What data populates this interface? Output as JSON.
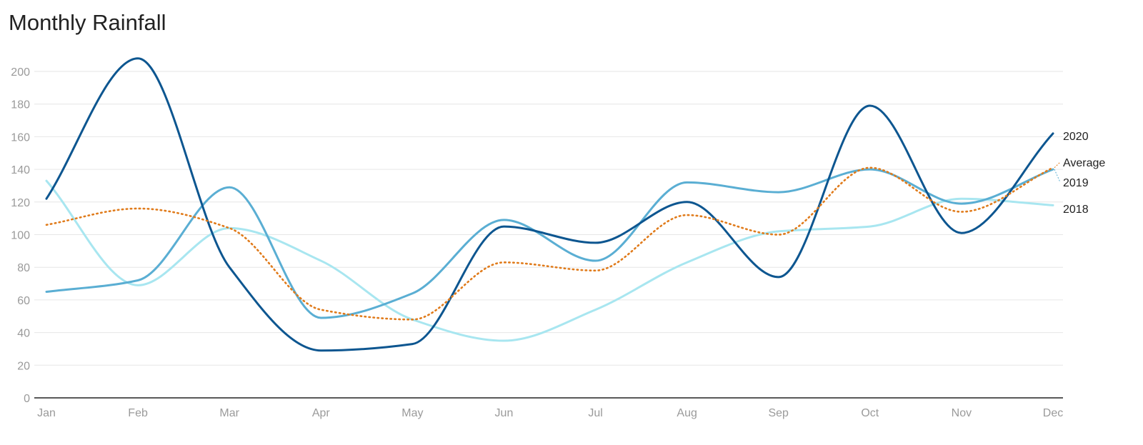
{
  "chart_data": {
    "type": "line",
    "title": "Monthly Rainfall",
    "xlabel": "",
    "ylabel": "",
    "categories": [
      "Jan",
      "Feb",
      "Mar",
      "Apr",
      "May",
      "Jun",
      "Jul",
      "Aug",
      "Sep",
      "Oct",
      "Nov",
      "Dec"
    ],
    "ylim": [
      0,
      200
    ],
    "yticks": [
      0,
      20,
      40,
      60,
      80,
      100,
      120,
      140,
      160,
      180,
      200
    ],
    "grid": true,
    "legend": "direct labels at right end of lines",
    "series": [
      {
        "name": "2018",
        "color": "#a8e6f0",
        "dashed": false,
        "values": [
          133,
          69,
          104,
          84,
          48,
          35,
          54,
          83,
          102,
          105,
          122,
          118
        ]
      },
      {
        "name": "2019",
        "color": "#5aaed3",
        "dashed": false,
        "values": [
          65,
          72,
          129,
          49,
          64,
          109,
          84,
          132,
          126,
          140,
          119,
          140
        ]
      },
      {
        "name": "2020",
        "color": "#0d5690",
        "dashed": false,
        "values": [
          122,
          208,
          80,
          29,
          33,
          105,
          95,
          120,
          74,
          179,
          101,
          162
        ]
      },
      {
        "name": "Average",
        "color": "#e07b1b",
        "dashed": true,
        "values": [
          106,
          116,
          104,
          54,
          48,
          83,
          78,
          112,
          100,
          141,
          114,
          141
        ]
      }
    ]
  }
}
